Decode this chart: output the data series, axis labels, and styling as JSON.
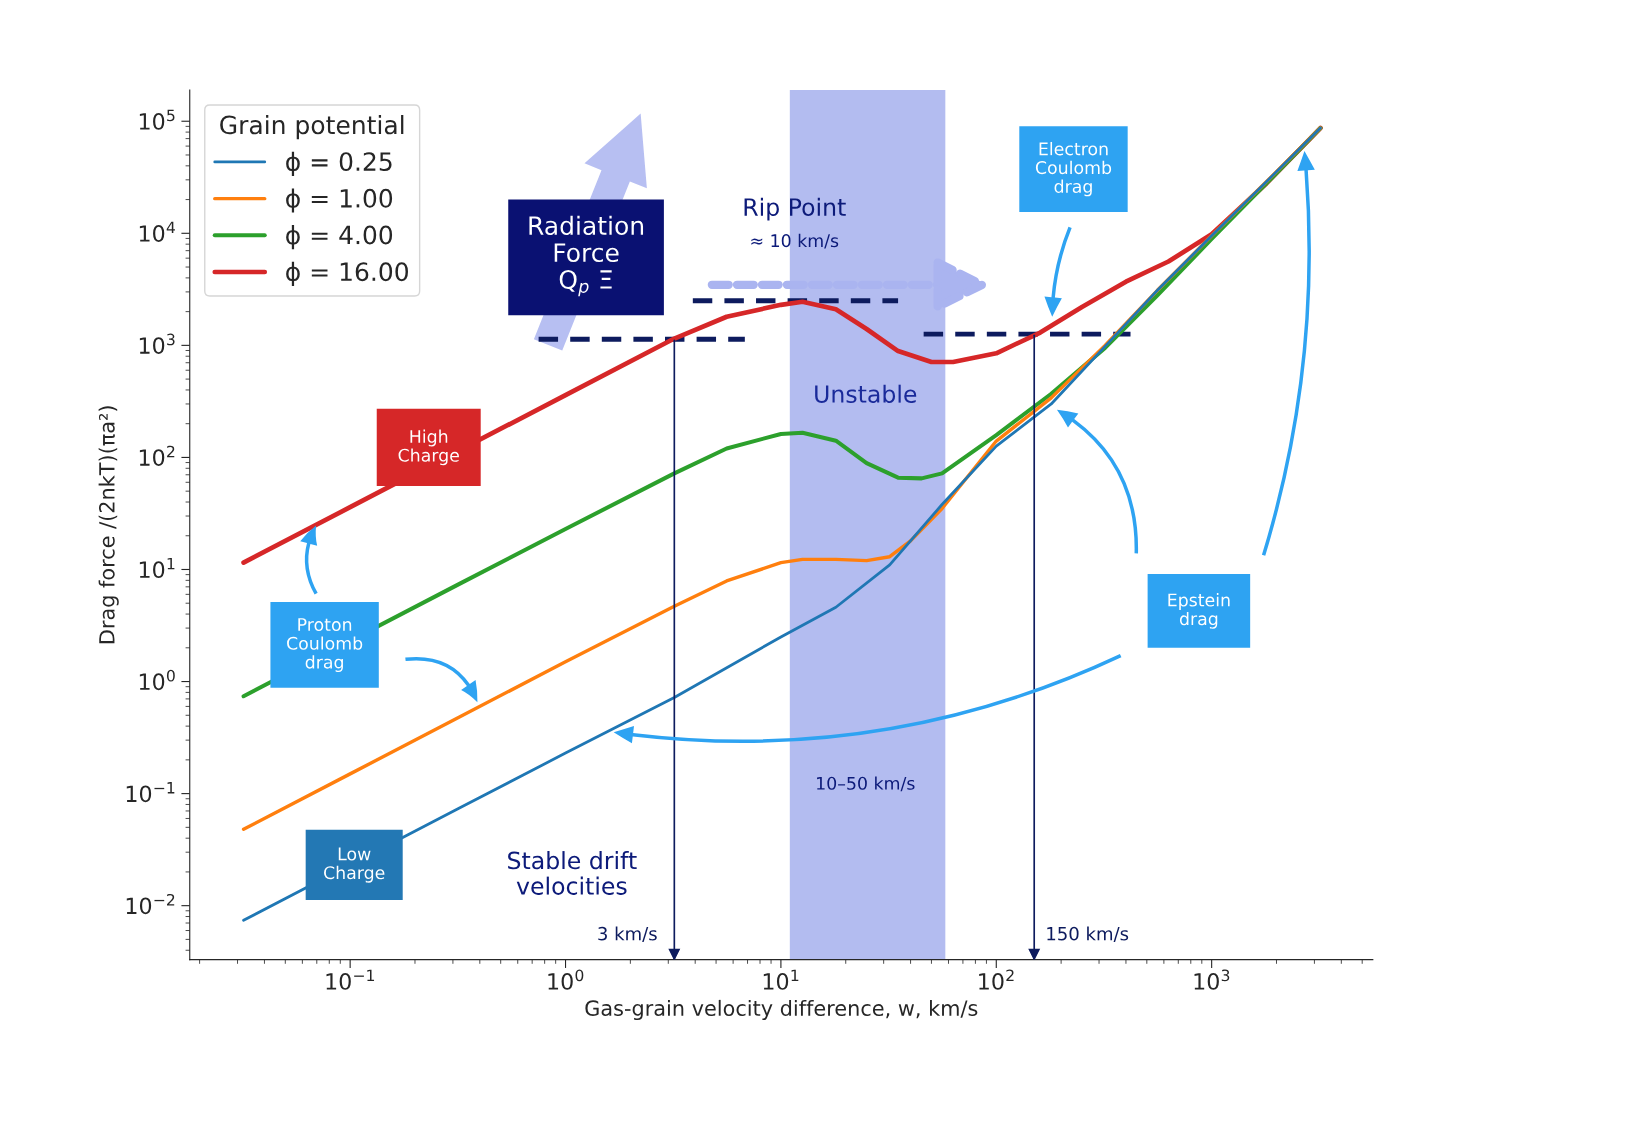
{
  "chart_data": {
    "type": "line",
    "xlabel": "Gas-grain velocity difference, w, km/s",
    "ylabel": "Drag force /(2nkT)(πa²)",
    "legend_title": "Grain potential",
    "legend": "top left",
    "log": "xy",
    "grid": false,
    "xlim": [
      0.018,
      5600
    ],
    "ylim": [
      0.0033,
      190000
    ],
    "xticks": [
      {
        "value": 0.1,
        "label": "10$^{−1}$"
      },
      {
        "value": 1,
        "label": "10$^{0}$"
      },
      {
        "value": 10,
        "label": "10$^{1}$"
      },
      {
        "value": 100,
        "label": "10$^{2}$"
      },
      {
        "value": 1000,
        "label": "10$^{3}$"
      }
    ],
    "yticks": [
      {
        "value": 0.01,
        "label": "10$^{−2}$"
      },
      {
        "value": 0.1,
        "label": "10$^{−1}$"
      },
      {
        "value": 1,
        "label": "10$^{0}$"
      },
      {
        "value": 10,
        "label": "10$^{1}$"
      },
      {
        "value": 100,
        "label": "10$^{2}$"
      },
      {
        "value": 1000,
        "label": "10$^{3}$"
      },
      {
        "value": 10000,
        "label": "10$^{4}$"
      },
      {
        "value": 100000,
        "label": "10$^{5}$"
      }
    ],
    "series": [
      {
        "name": "ϕ = 0.25",
        "color": "#1f77b4",
        "x": [
          0.032,
          0.32,
          1,
          3.2,
          10,
          18,
          32,
          56,
          100,
          180,
          320,
          560,
          1000,
          1800,
          3200
        ],
        "values": [
          0.0074,
          0.074,
          0.23,
          0.72,
          2.5,
          4.6,
          11,
          38,
          126,
          300,
          980,
          3100,
          9500,
          29000,
          87000
        ]
      },
      {
        "name": "ϕ = 1.00",
        "color": "#ff7f0e",
        "x": [
          0.032,
          0.1,
          0.32,
          1,
          3.2,
          5.6,
          10,
          12.6,
          18,
          25,
          32,
          40,
          56,
          100,
          180,
          320,
          560,
          1000,
          1800,
          3200
        ],
        "values": [
          0.048,
          0.15,
          0.48,
          1.5,
          4.7,
          7.9,
          11.5,
          12.3,
          12.3,
          12,
          13,
          18,
          35,
          140,
          340,
          1000,
          3100,
          9500,
          29000,
          87000
        ]
      },
      {
        "name": "ϕ = 4.00",
        "color": "#2ca02c",
        "x": [
          0.032,
          0.32,
          1,
          3.2,
          5.6,
          10,
          12.6,
          18,
          25,
          35,
          45,
          56,
          100,
          180,
          320,
          560,
          1000,
          1800,
          3200
        ],
        "values": [
          0.74,
          7.4,
          23,
          72,
          120,
          162,
          166,
          141,
          89,
          66,
          65,
          72,
          158,
          370,
          950,
          2800,
          8900,
          28000,
          87000
        ]
      },
      {
        "name": "ϕ = 16.00",
        "color": "#d62728",
        "x": [
          0.032,
          0.1,
          1,
          3.2,
          5.6,
          10,
          12.6,
          18,
          25,
          35,
          50,
          63,
          100,
          160,
          250,
          400,
          630,
          1000,
          1800,
          3200
        ],
        "values": [
          11.5,
          36,
          360,
          1150,
          1800,
          2300,
          2450,
          2100,
          1400,
          890,
          710,
          710,
          850,
          1300,
          2200,
          3700,
          5600,
          9800,
          28000,
          87000
        ]
      },
      {
        "color": "#0d1b5e",
        "line_style": "dashed",
        "x": [
          0.75,
          6.8
        ],
        "values": [
          1135,
          1135
        ]
      },
      {
        "color": "#0d1b5e",
        "line_style": "dashed",
        "x": [
          3.9,
          35
        ],
        "values": [
          2500,
          2500
        ]
      },
      {
        "color": "#0d1b5e",
        "line_style": "dashed",
        "x": [
          46,
          420
        ],
        "values": [
          1260,
          1260
        ]
      }
    ],
    "bands": [
      {
        "axis": "x",
        "from": 11,
        "to": 58,
        "color": "#8090e6"
      }
    ],
    "ref_lines": [
      {
        "axis": "x",
        "value": 3.2,
        "label": "3 km/s",
        "color": "#0d1b5e"
      },
      {
        "axis": "x",
        "value": 150,
        "label": "150 km/s",
        "color": "#0d1b5e"
      }
    ],
    "annotations": [
      "Radiation\nForce\nQ$_{p}$ Ξ",
      "Rip Point",
      "≈ 10 km/s",
      "Unstable",
      "10–50 km/s",
      "Electron\nCoulomb\ndrag",
      "High\nCharge",
      "Proton\nCoulomb\ndrag",
      "Epstein\ndrag",
      "Low\nCharge",
      "Stable drift\nvelocities"
    ]
  }
}
